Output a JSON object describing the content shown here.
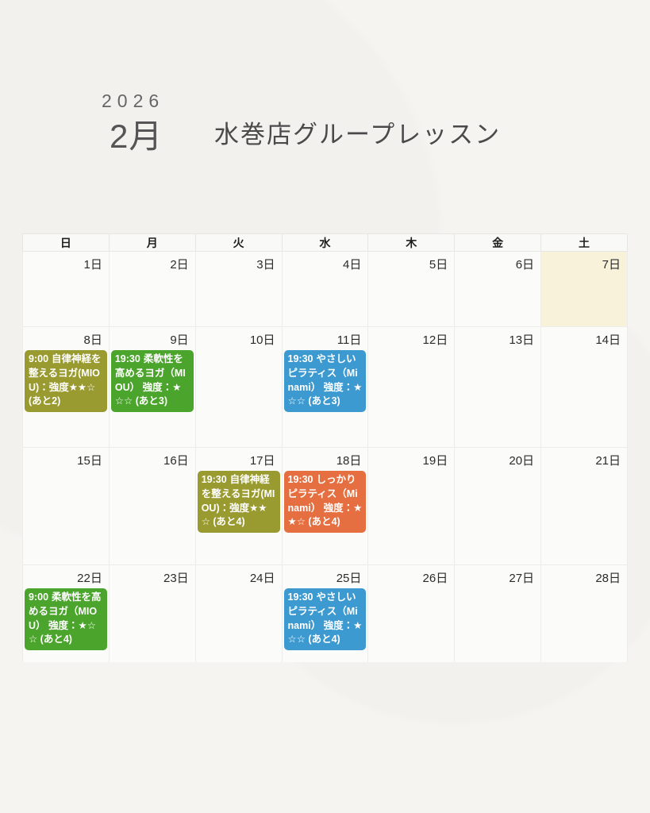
{
  "header": {
    "year": "2026",
    "month": "2月",
    "title": "水巻店グループレッスン"
  },
  "colors": {
    "page_bg": "#f5f4f1",
    "cell_bg": "#fbfbfa",
    "saturday_highlight": "#f9f2da",
    "event_olive": "#999a30",
    "event_green": "#4ba42b",
    "event_blue": "#3d9ad0",
    "event_orange": "#e56f41"
  },
  "calendar": {
    "weekdays": [
      "日",
      "月",
      "火",
      "水",
      "木",
      "金",
      "土"
    ],
    "cells": [
      {
        "date": "1日"
      },
      {
        "date": "2日"
      },
      {
        "date": "3日"
      },
      {
        "date": "4日"
      },
      {
        "date": "5日"
      },
      {
        "date": "6日"
      },
      {
        "date": "7日"
      },
      {
        "date": "8日",
        "event": {
          "time": "9:00",
          "title": "自律神経を整えるヨガ(MIOU)：強度★★☆ (あと2)",
          "color": "#999a30"
        }
      },
      {
        "date": "9日",
        "event": {
          "time": "19:30",
          "title": "柔軟性を高めるヨガ（MIOU） 強度：★☆☆ (あと3)",
          "color": "#4ba42b"
        }
      },
      {
        "date": "10日"
      },
      {
        "date": "11日",
        "event": {
          "time": "19:30",
          "title": "やさしいピラティス（Minami） 強度：★☆☆ (あと3)",
          "color": "#3d9ad0"
        }
      },
      {
        "date": "12日"
      },
      {
        "date": "13日"
      },
      {
        "date": "14日"
      },
      {
        "date": "15日"
      },
      {
        "date": "16日"
      },
      {
        "date": "17日",
        "event": {
          "time": "19:30",
          "title": "自律神経を整えるヨガ(MIOU)：強度★★☆ (あと4)",
          "color": "#999a30"
        }
      },
      {
        "date": "18日",
        "event": {
          "time": "19:30",
          "title": "しっかりピラティス（Minami） 強度：★★☆ (あと4)",
          "color": "#e56f41"
        }
      },
      {
        "date": "19日"
      },
      {
        "date": "20日"
      },
      {
        "date": "21日"
      },
      {
        "date": "22日",
        "event": {
          "time": "9:00",
          "title": "柔軟性を高めるヨガ（MIOU） 強度：★☆☆ (あと4)",
          "color": "#4ba42b"
        }
      },
      {
        "date": "23日"
      },
      {
        "date": "24日"
      },
      {
        "date": "25日",
        "event": {
          "time": "19:30",
          "title": "やさしいピラティス（Minami） 強度：★☆☆ (あと4)",
          "color": "#3d9ad0"
        }
      },
      {
        "date": "26日"
      },
      {
        "date": "27日"
      },
      {
        "date": "28日"
      }
    ]
  }
}
